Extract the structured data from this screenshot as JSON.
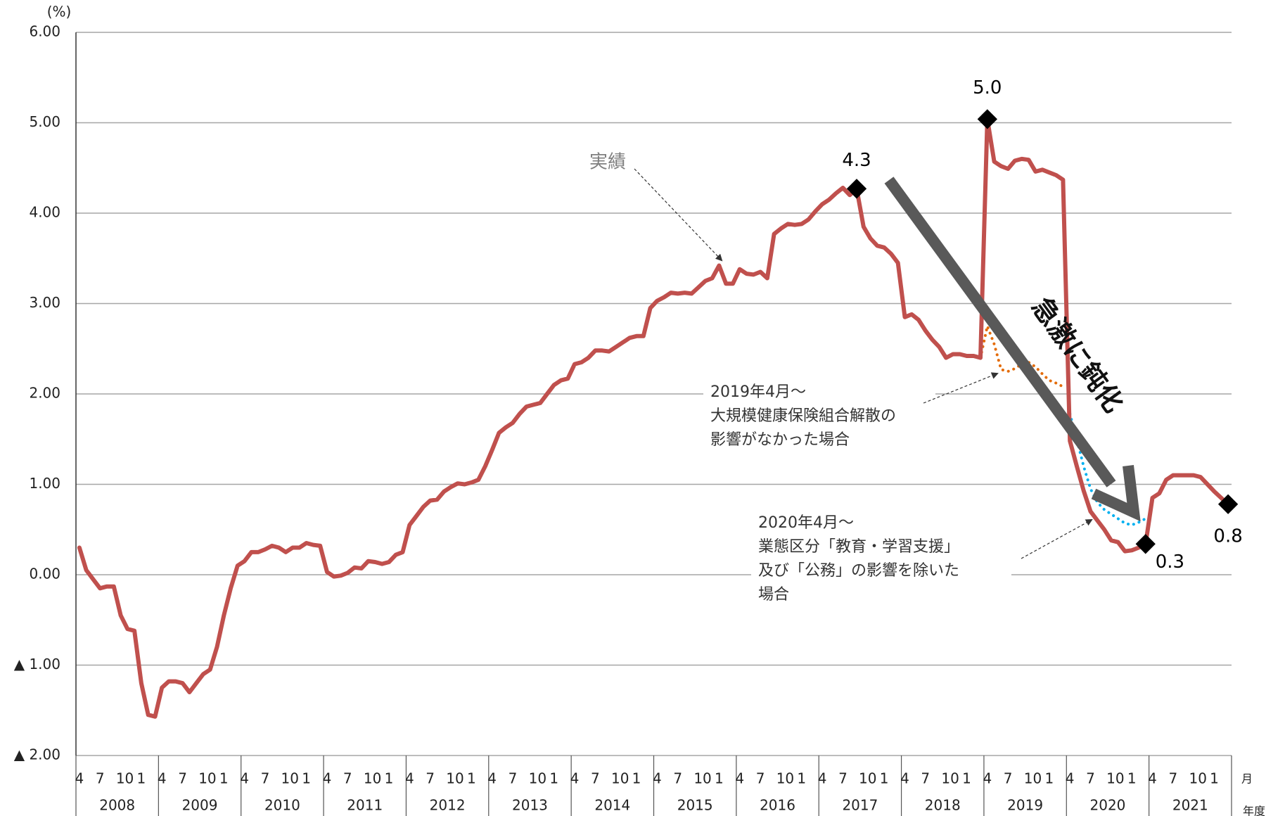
{
  "chart_data": {
    "type": "line",
    "y_unit": "(%)",
    "x_unit_month": "月",
    "x_unit_year": "年度",
    "years": [
      "2008",
      "2009",
      "2010",
      "2011",
      "2012",
      "2013",
      "2014",
      "2015",
      "2016",
      "2017",
      "2018",
      "2019",
      "2020",
      "2021"
    ],
    "month_ticks": [
      "4",
      "7",
      "10",
      "1"
    ],
    "ylim": [
      -2,
      6
    ],
    "yticks": [
      {
        "value": -2,
        "label": "▲ 2.00"
      },
      {
        "value": -1,
        "label": "▲ 1.00"
      },
      {
        "value": 0,
        "label": "0.00"
      },
      {
        "value": 1,
        "label": "1.00"
      },
      {
        "value": 2,
        "label": "2.00"
      },
      {
        "value": 3,
        "label": "3.00"
      },
      {
        "value": 4,
        "label": "4.00"
      },
      {
        "value": 5,
        "label": "5.00"
      },
      {
        "value": 6,
        "label": "6.00"
      }
    ],
    "grid": true,
    "series": [
      {
        "name": "実績",
        "color": "#c0504d",
        "style": "solid",
        "values": [
          0.3,
          0.05,
          -0.05,
          -0.15,
          -0.13,
          -0.13,
          -0.45,
          -0.6,
          -0.62,
          -1.2,
          -1.55,
          -1.57,
          -1.25,
          -1.18,
          -1.18,
          -1.2,
          -1.3,
          -1.2,
          -1.1,
          -1.05,
          -0.8,
          -0.45,
          -0.15,
          0.1,
          0.15,
          0.25,
          0.25,
          0.28,
          0.32,
          0.3,
          0.25,
          0.3,
          0.3,
          0.35,
          0.33,
          0.32,
          0.03,
          -0.02,
          -0.01,
          0.02,
          0.08,
          0.07,
          0.15,
          0.14,
          0.12,
          0.14,
          0.22,
          0.25,
          0.55,
          0.65,
          0.75,
          0.82,
          0.83,
          0.92,
          0.97,
          1.01,
          1.0,
          1.02,
          1.05,
          1.2,
          1.38,
          1.57,
          1.63,
          1.68,
          1.78,
          1.86,
          1.88,
          1.9,
          2.0,
          2.1,
          2.15,
          2.17,
          2.33,
          2.35,
          2.4,
          2.48,
          2.48,
          2.47,
          2.52,
          2.57,
          2.62,
          2.64,
          2.64,
          2.95,
          3.03,
          3.07,
          3.12,
          3.11,
          3.12,
          3.11,
          3.18,
          3.25,
          3.28,
          3.42,
          3.22,
          3.22,
          3.38,
          3.33,
          3.32,
          3.35,
          3.28,
          3.77,
          3.83,
          3.88,
          3.87,
          3.88,
          3.93,
          4.02,
          4.1,
          4.15,
          4.22,
          4.28,
          4.2,
          4.27,
          3.85,
          3.72,
          3.64,
          3.62,
          3.55,
          3.45,
          2.85,
          2.88,
          2.82,
          2.7,
          2.6,
          2.52,
          2.4,
          2.44,
          2.44,
          2.42,
          2.42,
          2.4,
          5.04,
          4.57,
          4.52,
          4.49,
          4.58,
          4.6,
          4.59,
          4.46,
          4.48,
          4.45,
          4.42,
          4.37,
          1.48,
          1.2,
          0.93,
          0.7,
          0.6,
          0.5,
          0.38,
          0.36,
          0.26,
          0.27,
          0.3,
          0.34,
          0.85,
          0.9,
          1.05,
          1.1,
          1.1,
          1.1,
          1.1,
          1.08,
          1.0,
          0.92,
          0.85,
          0.78
        ],
        "value_labels": [
          null,
          null,
          null,
          null,
          null,
          null,
          null,
          null,
          null,
          null,
          null,
          null,
          null,
          null,
          null,
          null,
          null,
          null,
          null,
          null,
          null,
          null,
          null,
          null,
          null,
          null,
          null,
          null,
          null,
          null,
          null,
          null,
          null,
          null,
          null,
          null,
          null,
          null,
          null,
          null,
          null,
          null,
          null,
          null,
          null,
          null,
          null,
          null,
          null,
          null,
          null,
          null,
          null,
          null,
          null,
          null,
          null,
          null,
          null,
          null,
          null,
          null,
          null,
          null,
          null,
          null,
          null,
          null,
          null,
          null,
          null,
          null,
          null,
          null,
          null,
          null,
          null,
          null,
          null,
          null,
          null,
          null,
          null,
          null,
          null,
          null,
          null,
          null,
          null,
          null,
          null,
          null,
          null,
          null,
          null,
          null,
          null,
          null,
          null,
          null,
          null,
          null,
          null,
          null,
          null,
          null,
          null,
          null,
          null,
          null,
          null,
          null,
          null,
          "4.3",
          null,
          null,
          null,
          null,
          null,
          null,
          null,
          null,
          null,
          null,
          null,
          null,
          null,
          null,
          null,
          null,
          null,
          null,
          "5.0",
          null,
          null,
          null,
          null,
          null,
          null,
          null,
          null,
          null,
          null,
          null,
          null,
          null,
          null,
          null,
          null,
          null,
          null,
          null,
          null,
          null,
          null,
          "0.3",
          null,
          null,
          null,
          null,
          null,
          null,
          null,
          null,
          null,
          null,
          null,
          "0.8"
        ]
      },
      {
        "name": "2019年4月～大規模健康保険組合解散の影響がなかった場合",
        "color": "#e46c0a",
        "style": "dotted",
        "values": [
          null,
          null,
          null,
          null,
          null,
          null,
          null,
          null,
          null,
          null,
          null,
          null,
          null,
          null,
          null,
          null,
          null,
          null,
          null,
          null,
          null,
          null,
          null,
          null,
          null,
          null,
          null,
          null,
          null,
          null,
          null,
          null,
          null,
          null,
          null,
          null,
          null,
          null,
          null,
          null,
          null,
          null,
          null,
          null,
          null,
          null,
          null,
          null,
          null,
          null,
          null,
          null,
          null,
          null,
          null,
          null,
          null,
          null,
          null,
          null,
          null,
          null,
          null,
          null,
          null,
          null,
          null,
          null,
          null,
          null,
          null,
          null,
          null,
          null,
          null,
          null,
          null,
          null,
          null,
          null,
          null,
          null,
          null,
          null,
          null,
          null,
          null,
          null,
          null,
          null,
          null,
          null,
          null,
          null,
          null,
          null,
          null,
          null,
          null,
          null,
          null,
          null,
          null,
          null,
          null,
          null,
          null,
          null,
          null,
          null,
          null,
          null,
          null,
          null,
          null,
          null,
          null,
          null,
          null,
          null,
          null,
          null,
          null,
          null,
          null,
          null,
          null,
          null,
          null,
          null,
          null,
          2.4,
          2.75,
          2.55,
          2.27,
          2.25,
          2.28,
          2.33,
          2.35,
          2.3,
          2.22,
          2.15,
          2.12,
          2.08,
          null,
          null,
          null,
          null,
          null,
          null,
          null,
          null,
          null,
          null,
          null,
          null,
          null,
          null,
          null,
          null,
          null,
          null,
          null,
          null,
          null,
          null,
          null,
          null
        ]
      },
      {
        "name": "2020年4月～業態区分「教育・学習支援」及び「公務」の影響を除いた場合",
        "color": "#00b0f0",
        "style": "dotted",
        "values": [
          null,
          null,
          null,
          null,
          null,
          null,
          null,
          null,
          null,
          null,
          null,
          null,
          null,
          null,
          null,
          null,
          null,
          null,
          null,
          null,
          null,
          null,
          null,
          null,
          null,
          null,
          null,
          null,
          null,
          null,
          null,
          null,
          null,
          null,
          null,
          null,
          null,
          null,
          null,
          null,
          null,
          null,
          null,
          null,
          null,
          null,
          null,
          null,
          null,
          null,
          null,
          null,
          null,
          null,
          null,
          null,
          null,
          null,
          null,
          null,
          null,
          null,
          null,
          null,
          null,
          null,
          null,
          null,
          null,
          null,
          null,
          null,
          null,
          null,
          null,
          null,
          null,
          null,
          null,
          null,
          null,
          null,
          null,
          null,
          null,
          null,
          null,
          null,
          null,
          null,
          null,
          null,
          null,
          null,
          null,
          null,
          null,
          null,
          null,
          null,
          null,
          null,
          null,
          null,
          null,
          null,
          null,
          null,
          null,
          null,
          null,
          null,
          null,
          null,
          null,
          null,
          null,
          null,
          null,
          null,
          null,
          null,
          null,
          null,
          null,
          null,
          null,
          null,
          null,
          null,
          null,
          null,
          null,
          null,
          null,
          null,
          null,
          null,
          null,
          null,
          null,
          null,
          null,
          null,
          1.78,
          1.5,
          1.2,
          0.95,
          0.8,
          0.72,
          0.67,
          0.62,
          0.57,
          0.55,
          0.58,
          0.62,
          null,
          null,
          null,
          null,
          null,
          null,
          null,
          null,
          null,
          null,
          null,
          null
        ]
      }
    ],
    "annotations": {
      "actual": "実績",
      "case2019": [
        "2019年4月～",
        "大規模健康保険組合解散の",
        "影響がなかった場合"
      ],
      "case2020": [
        "2020年4月～",
        "業態区分「教育・学習支援」",
        "及び「公務」の影響を除いた",
        "場合"
      ],
      "trend": "急激に鈍化"
    }
  }
}
